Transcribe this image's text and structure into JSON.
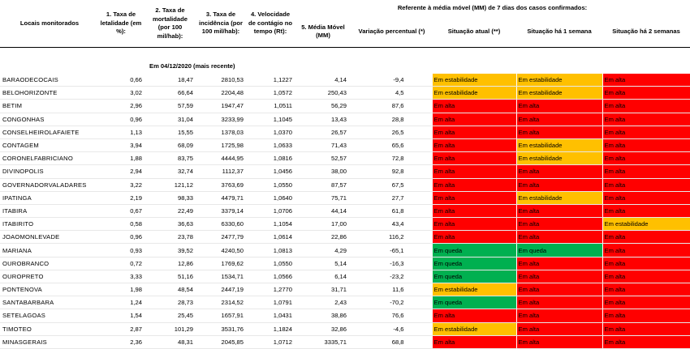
{
  "headers": {
    "locais": "Locais monitorados",
    "taxa_letalidade": "1. Taxa de letalidade (em %):",
    "taxa_mortalidade": "2. Taxa de mortalidade (por 100 mil/hab):",
    "taxa_incidencia": "3. Taxa de incidência (por 100 mil/hab):",
    "velocidade": "4. Velocidade de contágio no tempo (Rt):",
    "grupo": "Referente à média móvel (MM) de 7 dias  dos casos confirmados:",
    "media_movel": "5. Média Móvel (MM)",
    "variacao": "Variação percentual (*)",
    "situacao_atual": "Situação atual (**)",
    "situacao_1sem": "Situação há 1 semana",
    "situacao_2sem": "Situação há 2 semanas"
  },
  "date_label": "Em 04/12/2020 (mais recente)",
  "status_colors": {
    "Em alta": "#ff0000",
    "Em estabilidade": "#ffc000",
    "Em queda": "#00b050"
  },
  "rows": [
    {
      "local": "BARAODECOCAIS",
      "letalidade": "0,66",
      "mortalidade": "18,47",
      "incidencia": "2810,53",
      "rt": "1,1227",
      "mm": "4,14",
      "variacao": "-9,4",
      "atual": "Em estabilidade",
      "sem1": "Em estabilidade",
      "sem2": "Em alta"
    },
    {
      "local": "BELOHORIZONTE",
      "letalidade": "3,02",
      "mortalidade": "66,64",
      "incidencia": "2204,48",
      "rt": "1,0572",
      "mm": "250,43",
      "variacao": "4,5",
      "atual": "Em estabilidade",
      "sem1": "Em estabilidade",
      "sem2": "Em alta"
    },
    {
      "local": "BETIM",
      "letalidade": "2,96",
      "mortalidade": "57,59",
      "incidencia": "1947,47",
      "rt": "1,0511",
      "mm": "56,29",
      "variacao": "87,6",
      "atual": "Em alta",
      "sem1": "Em alta",
      "sem2": "Em alta"
    },
    {
      "local": "CONGONHAS",
      "letalidade": "0,96",
      "mortalidade": "31,04",
      "incidencia": "3233,99",
      "rt": "1,1045",
      "mm": "13,43",
      "variacao": "28,8",
      "atual": "Em alta",
      "sem1": "Em alta",
      "sem2": "Em alta"
    },
    {
      "local": "CONSELHEIROLAFAIETE",
      "letalidade": "1,13",
      "mortalidade": "15,55",
      "incidencia": "1378,03",
      "rt": "1,0370",
      "mm": "26,57",
      "variacao": "26,5",
      "atual": "Em alta",
      "sem1": "Em alta",
      "sem2": "Em alta"
    },
    {
      "local": "CONTAGEM",
      "letalidade": "3,94",
      "mortalidade": "68,09",
      "incidencia": "1725,98",
      "rt": "1,0633",
      "mm": "71,43",
      "variacao": "65,6",
      "atual": "Em alta",
      "sem1": "Em estabilidade",
      "sem2": "Em alta"
    },
    {
      "local": "CORONELFABRICIANO",
      "letalidade": "1,88",
      "mortalidade": "83,75",
      "incidencia": "4444,95",
      "rt": "1,0816",
      "mm": "52,57",
      "variacao": "72,8",
      "atual": "Em alta",
      "sem1": "Em estabilidade",
      "sem2": "Em alta"
    },
    {
      "local": "DIVINOPOLIS",
      "letalidade": "2,94",
      "mortalidade": "32,74",
      "incidencia": "1112,37",
      "rt": "1,0456",
      "mm": "38,00",
      "variacao": "92,8",
      "atual": "Em alta",
      "sem1": "Em alta",
      "sem2": "Em alta"
    },
    {
      "local": "GOVERNADORVALADARES",
      "letalidade": "3,22",
      "mortalidade": "121,12",
      "incidencia": "3763,69",
      "rt": "1,0550",
      "mm": "87,57",
      "variacao": "67,5",
      "atual": "Em alta",
      "sem1": "Em alta",
      "sem2": "Em alta"
    },
    {
      "local": "IPATINGA",
      "letalidade": "2,19",
      "mortalidade": "98,33",
      "incidencia": "4479,71",
      "rt": "1,0640",
      "mm": "75,71",
      "variacao": "27,7",
      "atual": "Em alta",
      "sem1": "Em estabilidade",
      "sem2": "Em alta"
    },
    {
      "local": "ITABIRA",
      "letalidade": "0,67",
      "mortalidade": "22,49",
      "incidencia": "3379,14",
      "rt": "1,0706",
      "mm": "44,14",
      "variacao": "61,8",
      "atual": "Em alta",
      "sem1": "Em alta",
      "sem2": "Em alta"
    },
    {
      "local": "ITABIRITO",
      "letalidade": "0,58",
      "mortalidade": "36,63",
      "incidencia": "6330,60",
      "rt": "1,1054",
      "mm": "17,00",
      "variacao": "43,4",
      "atual": "Em alta",
      "sem1": "Em alta",
      "sem2": "Em estabilidade"
    },
    {
      "local": "JOAOMONLEVADE",
      "letalidade": "0,96",
      "mortalidade": "23,78",
      "incidencia": "2477,79",
      "rt": "1,0614",
      "mm": "22,86",
      "variacao": "116,2",
      "atual": "Em alta",
      "sem1": "Em alta",
      "sem2": "Em alta"
    },
    {
      "local": "MARIANA",
      "letalidade": "0,93",
      "mortalidade": "39,52",
      "incidencia": "4240,50",
      "rt": "1,0813",
      "mm": "4,29",
      "variacao": "-65,1",
      "atual": "Em queda",
      "sem1": "Em queda",
      "sem2": "Em alta"
    },
    {
      "local": "OUROBRANCO",
      "letalidade": "0,72",
      "mortalidade": "12,86",
      "incidencia": "1769,62",
      "rt": "1,0550",
      "mm": "5,14",
      "variacao": "-16,3",
      "atual": "Em queda",
      "sem1": "Em alta",
      "sem2": "Em alta"
    },
    {
      "local": "OUROPRETO",
      "letalidade": "3,33",
      "mortalidade": "51,16",
      "incidencia": "1534,71",
      "rt": "1,0566",
      "mm": "6,14",
      "variacao": "-23,2",
      "atual": "Em queda",
      "sem1": "Em alta",
      "sem2": "Em alta"
    },
    {
      "local": "PONTENOVA",
      "letalidade": "1,98",
      "mortalidade": "48,54",
      "incidencia": "2447,19",
      "rt": "1,2770",
      "mm": "31,71",
      "variacao": "11,6",
      "atual": "Em estabilidade",
      "sem1": "Em alta",
      "sem2": "Em alta"
    },
    {
      "local": "SANTABARBARA",
      "letalidade": "1,24",
      "mortalidade": "28,73",
      "incidencia": "2314,52",
      "rt": "1,0791",
      "mm": "2,43",
      "variacao": "-70,2",
      "atual": "Em queda",
      "sem1": "Em alta",
      "sem2": "Em alta"
    },
    {
      "local": "SETELAGOAS",
      "letalidade": "1,54",
      "mortalidade": "25,45",
      "incidencia": "1657,91",
      "rt": "1,0431",
      "mm": "38,86",
      "variacao": "76,6",
      "atual": "Em alta",
      "sem1": "Em alta",
      "sem2": "Em alta"
    },
    {
      "local": "TIMOTEO",
      "letalidade": "2,87",
      "mortalidade": "101,29",
      "incidencia": "3531,76",
      "rt": "1,1824",
      "mm": "32,86",
      "variacao": "-4,6",
      "atual": "Em estabilidade",
      "sem1": "Em alta",
      "sem2": "Em alta"
    },
    {
      "local": "MINASGERAIS",
      "letalidade": "2,36",
      "mortalidade": "48,31",
      "incidencia": "2045,85",
      "rt": "1,0712",
      "mm": "3335,71",
      "variacao": "68,8",
      "atual": "Em alta",
      "sem1": "Em alta",
      "sem2": "Em alta"
    }
  ]
}
